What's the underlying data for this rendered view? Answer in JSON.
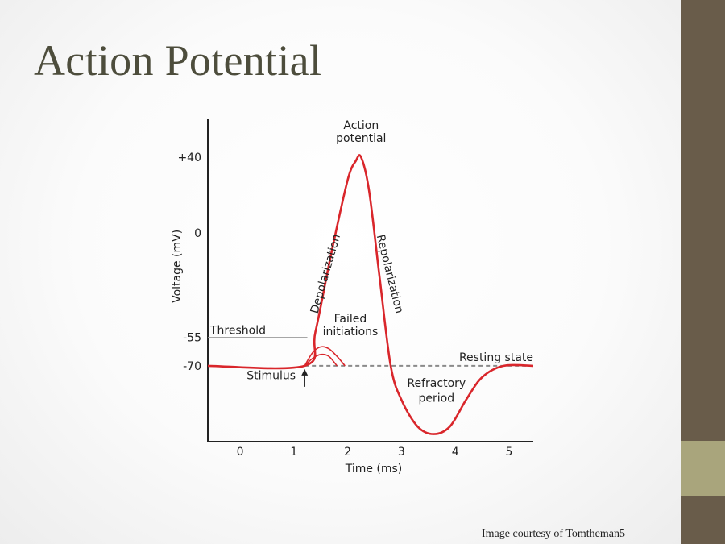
{
  "slide": {
    "title": "Action Potential",
    "credit": "Image courtesy of Tomtheman5"
  },
  "colors": {
    "side_bar": "#695c4a",
    "side_bar_accent": "#a9a57c",
    "title": "#4d4d3c",
    "trace": "#d9262b"
  },
  "chart_data": {
    "type": "line",
    "title": "",
    "xlabel": "Time (ms)",
    "ylabel": "Voltage (mV)",
    "xlim": [
      -0.6,
      5.45
    ],
    "ylim": [
      -110,
      60
    ],
    "x_ticks": [
      0,
      1,
      2,
      3,
      4,
      5
    ],
    "y_ticks": [
      {
        "value": 40,
        "label": "+40"
      },
      {
        "value": 0,
        "label": "0"
      },
      {
        "value": -55,
        "label": "-55"
      },
      {
        "value": -70,
        "label": "-70"
      }
    ],
    "grid": false,
    "series": [
      {
        "role": "action-potential",
        "x": [
          -0.6,
          1.2,
          1.4,
          1.7,
          2.0,
          2.15,
          2.25,
          2.4,
          2.6,
          2.8,
          3.0,
          3.3,
          3.6,
          3.9,
          4.2,
          4.5,
          4.9,
          5.45
        ],
        "y": [
          -70,
          -70,
          -52,
          -10,
          28,
          38,
          40,
          22,
          -25,
          -70,
          -88,
          -102,
          -106,
          -102,
          -88,
          -76,
          -70,
          -70
        ]
      },
      {
        "role": "failed-initiation-1",
        "x": [
          1.2,
          1.35,
          1.5,
          1.65,
          1.8,
          1.95
        ],
        "y": [
          -70,
          -63,
          -60,
          -61,
          -65,
          -70
        ]
      },
      {
        "role": "failed-initiation-2",
        "x": [
          1.2,
          1.35,
          1.5,
          1.65,
          1.8
        ],
        "y": [
          -70,
          -66,
          -64,
          -65,
          -70
        ]
      }
    ],
    "threshold": {
      "value": -55,
      "label": "Threshold"
    },
    "resting_state": {
      "value": -70,
      "label": "Resting state"
    },
    "annotations": [
      {
        "text": "Action",
        "x": 2.25,
        "y": 55
      },
      {
        "text": "potential",
        "x": 2.25,
        "y": 48
      },
      {
        "text": "Depolarization",
        "x": 1.65,
        "y": -22,
        "rotate": -74
      },
      {
        "text": "Repolarization",
        "x": 2.72,
        "y": -22,
        "rotate": 76
      },
      {
        "text": "Failed",
        "x": 2.05,
        "y": -47
      },
      {
        "text": "initiations",
        "x": 2.05,
        "y": -54
      },
      {
        "text": "Refractory",
        "x": 3.65,
        "y": -81
      },
      {
        "text": "period",
        "x": 3.65,
        "y": -89
      },
      {
        "text": "Stimulus",
        "x": 0.6,
        "y": -77
      }
    ],
    "stimulus_x": 1.2
  }
}
